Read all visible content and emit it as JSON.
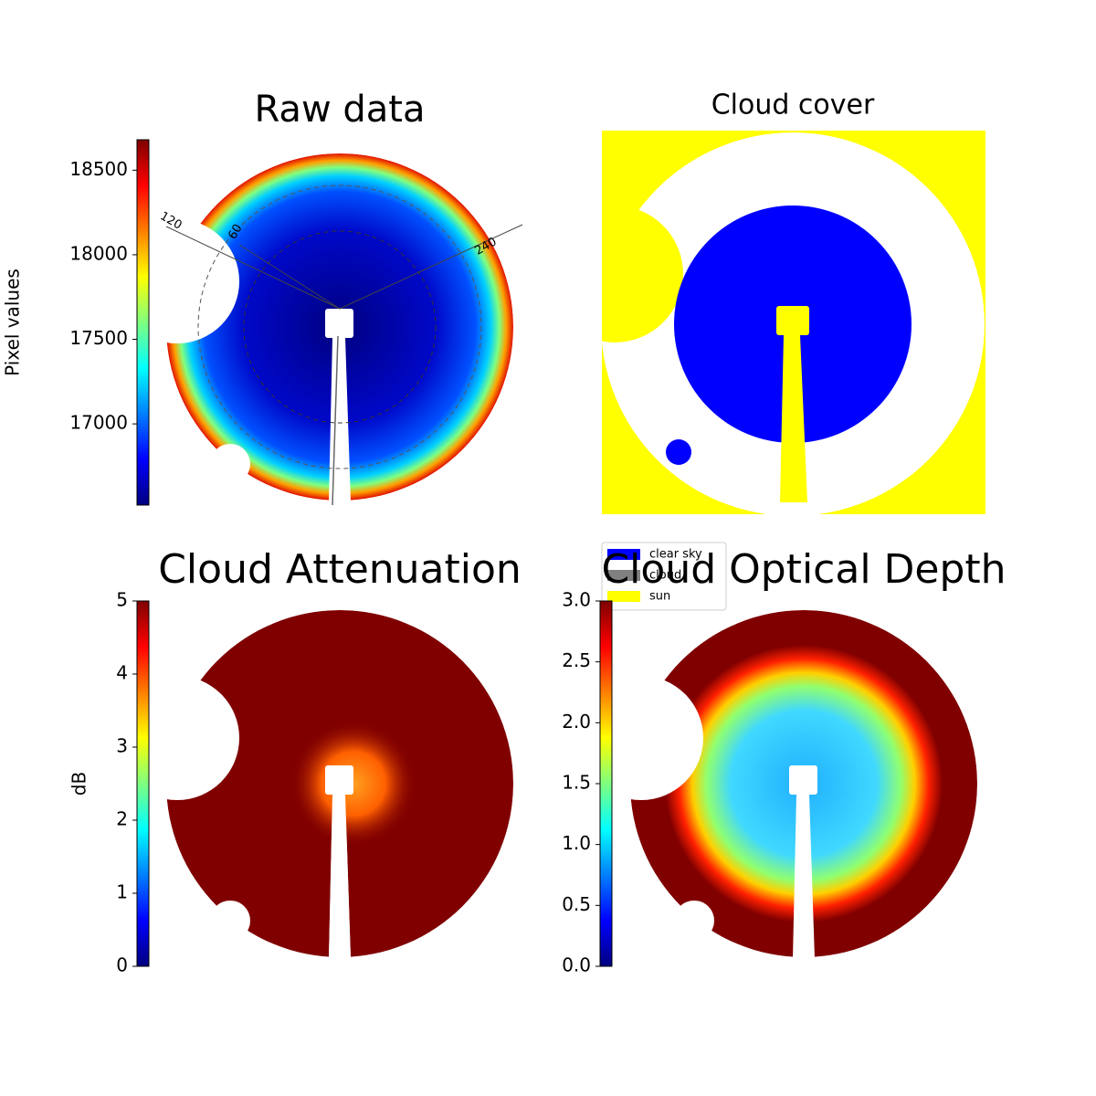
{
  "chart_data": [
    {
      "type": "image",
      "title": "Raw data",
      "colorbar_label": "Pixel values",
      "colormap": "jet",
      "ylim": [
        16520,
        18680
      ],
      "yticks": [
        17000,
        17500,
        18000,
        18500
      ],
      "annotations": [
        "120",
        "60",
        "240"
      ]
    },
    {
      "type": "image",
      "title": "Cloud cover",
      "series": [
        {
          "name": "clear sky",
          "color": "#0000ff"
        },
        {
          "name": "cloud",
          "color": "#808080"
        },
        {
          "name": "sun",
          "color": "#ffff00"
        }
      ]
    },
    {
      "type": "image",
      "title": "Cloud Attenuation",
      "colorbar_label": "dB",
      "colormap": "jet",
      "ylim": [
        0,
        5
      ],
      "yticks": [
        0,
        1,
        2,
        3,
        4,
        5
      ]
    },
    {
      "type": "image",
      "title": "Cloud Optical Depth",
      "colormap": "jet",
      "ylim": [
        0,
        3
      ],
      "yticks": [
        {
          "value": 0,
          "label": "0.0"
        },
        {
          "value": 0.5,
          "label": "0.5"
        },
        {
          "value": 1,
          "label": "1.0"
        },
        {
          "value": 1.5,
          "label": "1.5"
        },
        {
          "value": 2,
          "label": "2.0"
        },
        {
          "value": 2.5,
          "label": "2.5"
        },
        {
          "value": 3,
          "label": "3.0"
        }
      ]
    }
  ]
}
